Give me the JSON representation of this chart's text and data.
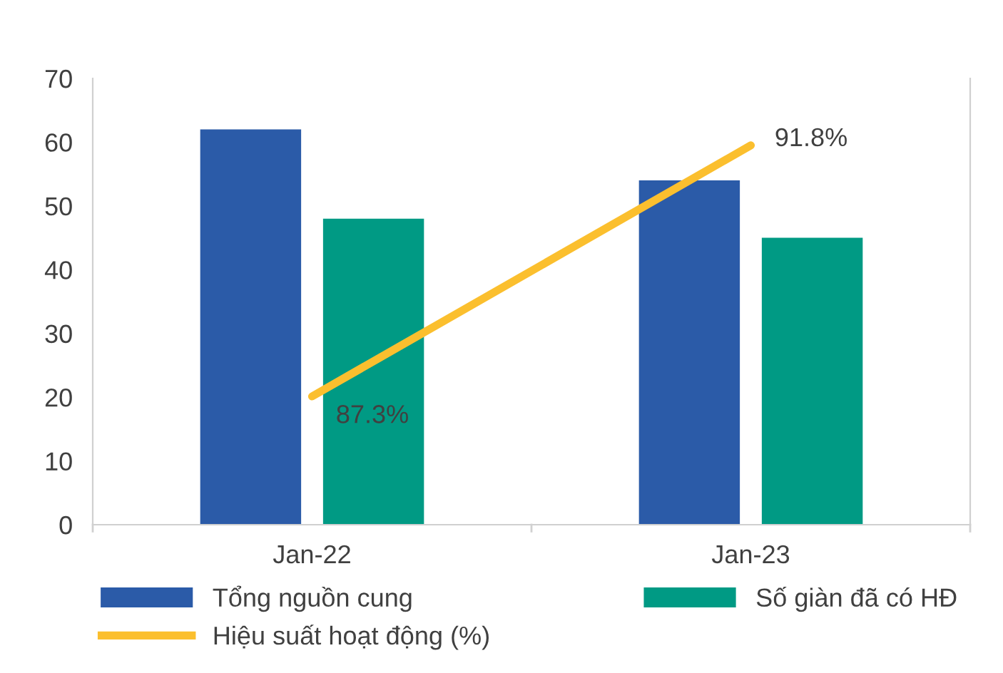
{
  "chart_data": {
    "type": "bar",
    "categories": [
      "Jan-22",
      "Jan-23"
    ],
    "series": [
      {
        "name": "Tổng nguồn cung",
        "color": "#2b5ba8",
        "values": [
          62,
          54
        ]
      },
      {
        "name": "Số giàn đã có HĐ",
        "color": "#009a84",
        "values": [
          48,
          45
        ]
      },
      {
        "name": "Hiệu suất hoạt động (%)",
        "type": "line",
        "axis": "y2",
        "color": "#fbbf2e",
        "values": [
          87.3,
          91.8
        ],
        "value_labels": [
          "87.3%",
          "91.8%"
        ]
      }
    ],
    "ylim": [
      0,
      70
    ],
    "yticks": [
      0,
      10,
      20,
      30,
      40,
      50,
      60,
      70
    ],
    "y2lim": [
      85.0,
      93.0
    ],
    "grid": false,
    "legend": "bottom"
  }
}
